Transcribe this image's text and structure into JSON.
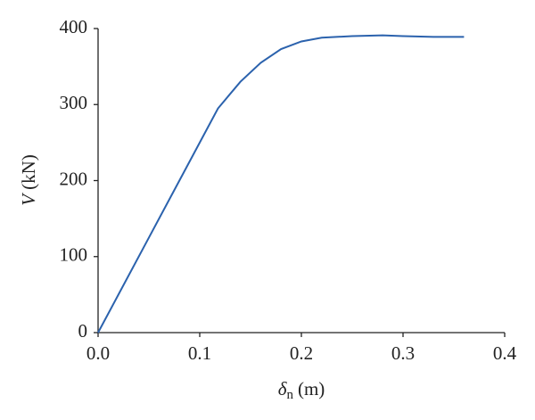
{
  "chart_data": {
    "type": "line",
    "xlabel_symbol": "δ",
    "xlabel_subscript": "n",
    "xlabel_unit": "(m)",
    "ylabel_symbol": "V",
    "ylabel_unit": "(kN)",
    "x": [
      0,
      0.02,
      0.05,
      0.08,
      0.1,
      0.118,
      0.14,
      0.16,
      0.18,
      0.2,
      0.22,
      0.25,
      0.28,
      0.3,
      0.33,
      0.36
    ],
    "series": [
      {
        "color": "#2b62ad",
        "values": [
          0,
          50,
          125,
          200,
          250,
          295,
          330,
          355,
          373,
          383,
          388,
          390,
          391,
          390,
          389,
          389
        ]
      }
    ],
    "xlim": [
      0,
      0.4
    ],
    "xticks": [
      {
        "value": 0,
        "label": "0.0"
      },
      0.1,
      0.2,
      0.3,
      0.4
    ],
    "ylim": [
      0,
      400
    ],
    "yticks": [
      0,
      100,
      200,
      300,
      400
    ]
  }
}
